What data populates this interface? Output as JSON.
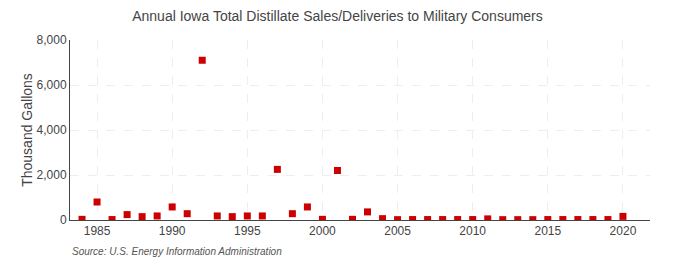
{
  "chart_data": {
    "type": "scatter",
    "title": "Annual Iowa Total Distillate Sales/Deliveries to Military Consumers",
    "ylabel": "Thousand Gallons",
    "annotations": [
      "Source: U.S. Energy Information Administration"
    ],
    "x": [
      1984,
      1985,
      1986,
      1987,
      1988,
      1989,
      1990,
      1991,
      1992,
      1993,
      1994,
      1995,
      1996,
      1997,
      1998,
      1999,
      2000,
      2001,
      2002,
      2003,
      2004,
      2005,
      2006,
      2007,
      2008,
      2009,
      2010,
      2011,
      2012,
      2013,
      2014,
      2015,
      2016,
      2017,
      2018,
      2019,
      2020
    ],
    "values": [
      30,
      800,
      20,
      240,
      150,
      180,
      580,
      280,
      7100,
      180,
      150,
      180,
      180,
      2250,
      280,
      580,
      30,
      2200,
      30,
      360,
      60,
      15,
      20,
      20,
      20,
      20,
      20,
      50,
      15,
      15,
      15,
      20,
      20,
      20,
      20,
      20,
      160
    ],
    "color": "#cc0000",
    "marker": "square",
    "xlim": [
      1983.2,
      2021.8
    ],
    "xticks": [
      1985,
      1990,
      1995,
      2000,
      2005,
      2010,
      2015,
      2020
    ],
    "ylim": [
      0,
      8000
    ],
    "yticks": [
      0,
      {
        "value": 2000,
        "label": "2,000"
      },
      {
        "value": 4000,
        "label": "4,000"
      },
      {
        "value": 6000,
        "label": "6,000"
      },
      {
        "value": 8000,
        "label": "8,000"
      }
    ],
    "grid": true
  }
}
